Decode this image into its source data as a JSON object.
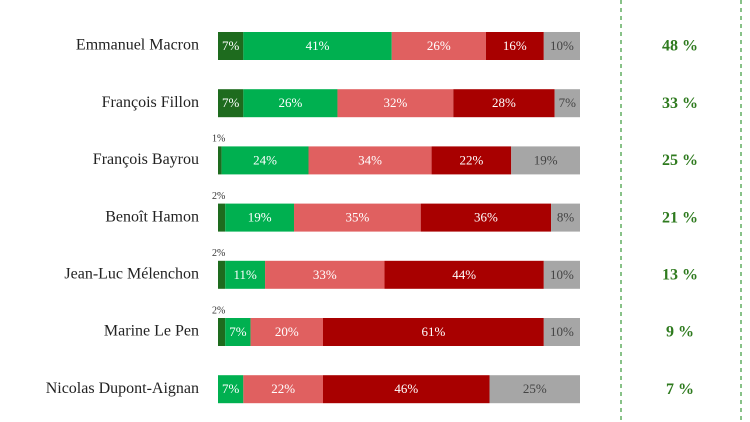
{
  "chart_data": {
    "type": "stacked-bar",
    "orientation": "horizontal",
    "categories": [
      "Emmanuel Macron",
      "François Fillon",
      "François Bayrou",
      "Benoît Hamon",
      "Jean-Luc Mélenchon",
      "Marine Le Pen",
      "Nicolas Dupont-Aignan"
    ],
    "xlim": [
      0,
      100
    ],
    "series": [
      {
        "color": "#1e6b1e",
        "values": [
          7,
          7,
          1,
          2,
          2,
          2,
          null
        ],
        "value_labels": [
          "7%",
          "7%",
          "1%",
          "2%",
          "2%",
          "2%",
          null
        ]
      },
      {
        "color": "#00b050",
        "values": [
          41,
          26,
          24,
          19,
          11,
          7,
          7
        ],
        "value_labels": [
          "41%",
          "26%",
          "24%",
          "19%",
          "11%",
          "7%",
          "7%"
        ]
      },
      {
        "color": "#e06060",
        "values": [
          26,
          32,
          34,
          35,
          33,
          20,
          22
        ],
        "value_labels": [
          "26%",
          "32%",
          "34%",
          "35%",
          "33%",
          "20%",
          "22%"
        ]
      },
      {
        "color": "#a80000",
        "values": [
          16,
          28,
          22,
          36,
          44,
          61,
          46
        ],
        "value_labels": [
          "16%",
          "28%",
          "22%",
          "36%",
          "44%",
          "61%",
          "46%"
        ]
      },
      {
        "color": "#a6a6a6",
        "values": [
          10,
          7,
          19,
          8,
          10,
          10,
          25
        ],
        "value_labels": [
          "10%",
          "7%",
          "19%",
          "8%",
          "10%",
          "10%",
          "25%"
        ]
      }
    ],
    "totals": {
      "color": "#2e7a1e",
      "values": [
        48,
        33,
        25,
        21,
        13,
        9,
        7
      ],
      "value_labels": [
        "48 %",
        "33 %",
        "25 %",
        "21 %",
        "13 %",
        "9 %",
        "7 %"
      ]
    }
  }
}
